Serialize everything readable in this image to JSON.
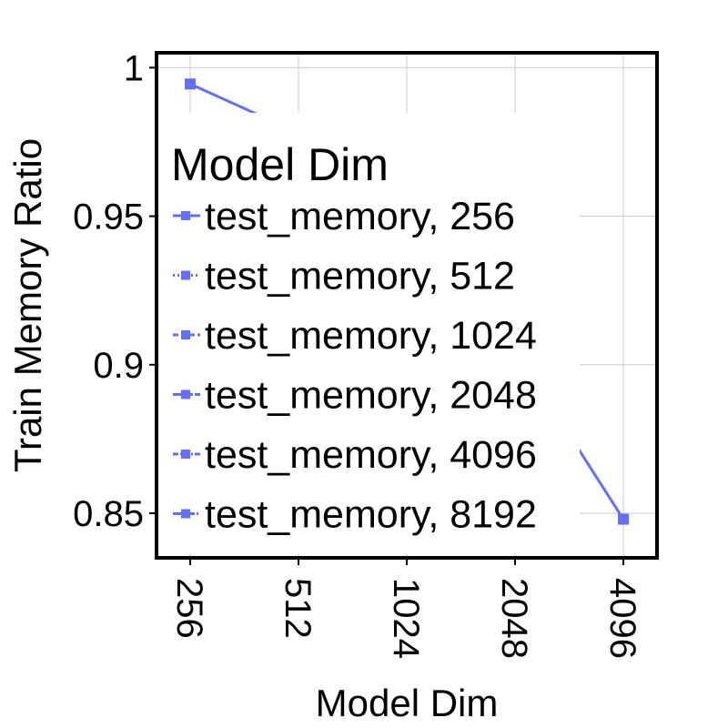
{
  "chart_data": {
    "type": "line",
    "xlabel": "Model Dim",
    "ylabel": "Train Memory Ratio",
    "x_scale": "categorical",
    "categories": [
      "256",
      "512",
      "1024",
      "2048",
      "4096"
    ],
    "ylim": [
      0.835,
      1.005
    ],
    "y_ticks": [
      {
        "value": 1,
        "label": "1"
      },
      {
        "value": 0.95,
        "label": "0.95"
      },
      {
        "value": 0.9,
        "label": "0.9"
      },
      {
        "value": 0.85,
        "label": "0.85"
      }
    ],
    "grid": true,
    "legend": {
      "title": "Model Dim",
      "placement": "center",
      "entries": [
        {
          "label": "test_memory, 256",
          "dash": "solid"
        },
        {
          "label": "test_memory, 512",
          "dash": "dot"
        },
        {
          "label": "test_memory, 1024",
          "dash": "dash"
        },
        {
          "label": "test_memory, 2048",
          "dash": "longdash"
        },
        {
          "label": "test_memory, 4096",
          "dash": "dashdot"
        },
        {
          "label": "test_memory, 8192",
          "dash": "longdashdot"
        }
      ]
    },
    "series": [
      {
        "color": "#636efa",
        "marker": "square",
        "values": [
          0.9945,
          0.978,
          0.948,
          0.905,
          0.848
        ]
      }
    ]
  }
}
